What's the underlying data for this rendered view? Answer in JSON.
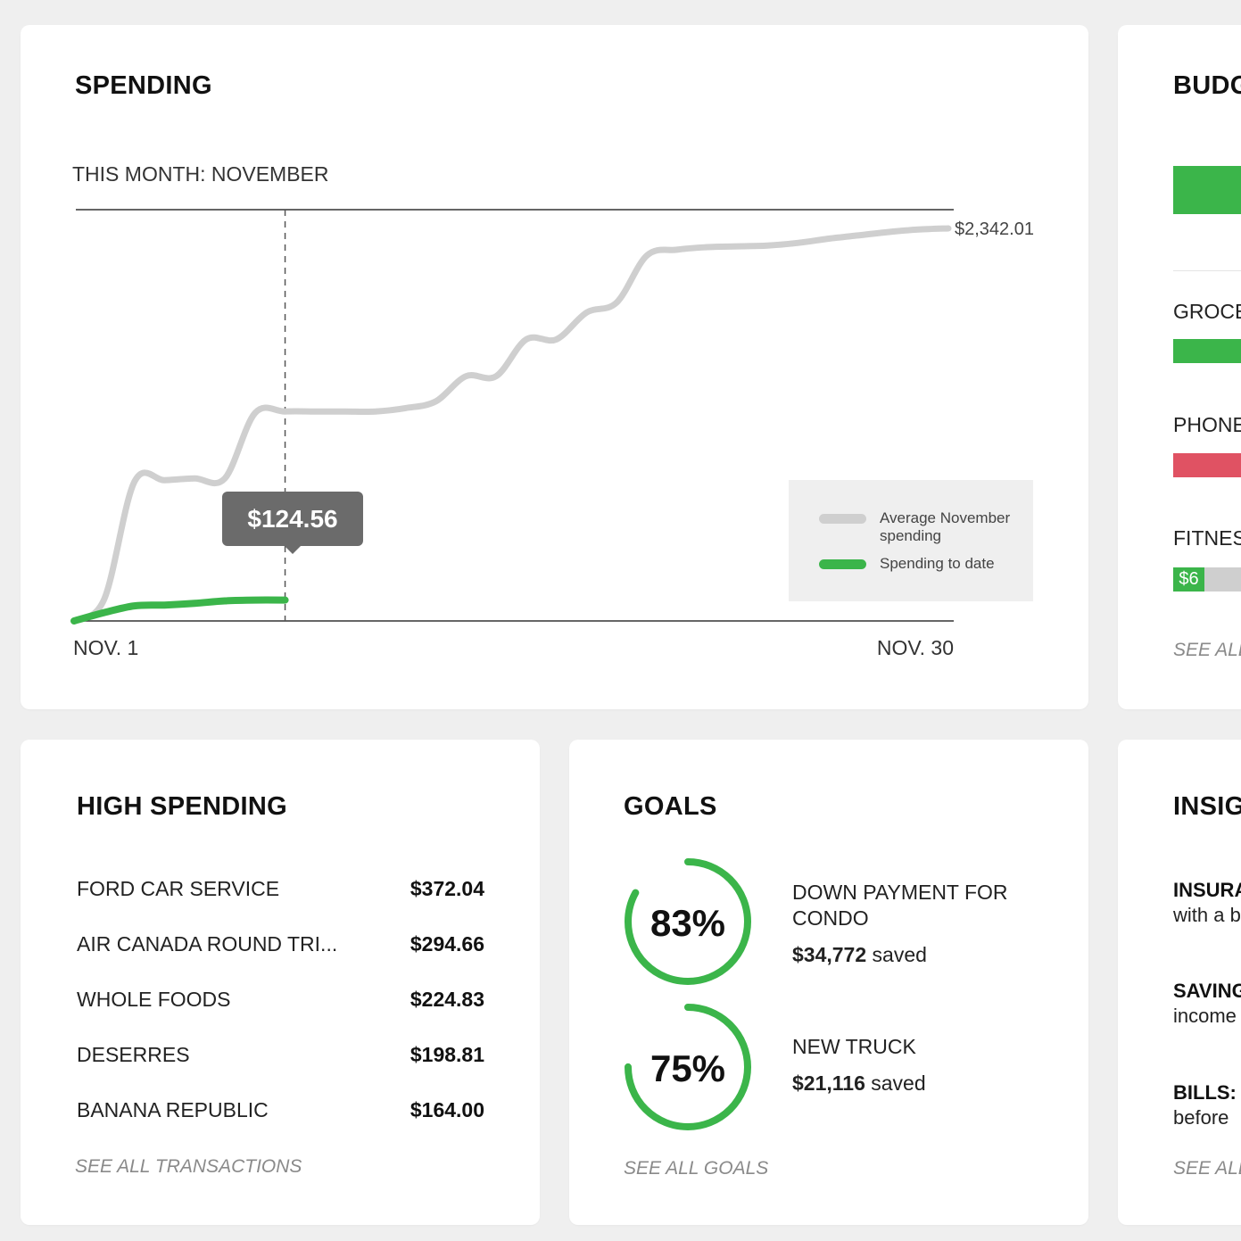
{
  "colors": {
    "green": "#3bb54a",
    "gray_line": "#cfcfcf",
    "red": "#e05263",
    "tooltip_bg": "#6b6b6b"
  },
  "spending": {
    "title": "SPENDING",
    "subtitle": "THIS MONTH: NOVEMBER",
    "tooltip": "$124.56",
    "end_value_label": "$2,342.01",
    "legend": [
      {
        "label": "Average November spending",
        "color": "#cfcfcf"
      },
      {
        "label": "Spending to date",
        "color": "#3bb54a"
      }
    ]
  },
  "chart_data": {
    "type": "line",
    "title": "",
    "x_range": [
      "NOV. 1",
      "NOV. 30"
    ],
    "tick_labels": [
      "NOV. 1",
      "NOV. 30"
    ],
    "ylim": [
      0,
      2342.01
    ],
    "grid": false,
    "legend_position": "bottom-right",
    "series": [
      {
        "name": "Average November spending",
        "color": "#cfcfcf",
        "x": [
          1,
          2,
          3,
          4,
          5,
          6,
          7,
          8,
          9,
          10,
          11,
          12,
          13,
          14,
          15,
          16,
          17,
          18,
          19,
          20,
          21,
          22,
          23,
          24,
          25,
          26,
          27,
          28,
          29,
          30
        ],
        "y": [
          0,
          130,
          830,
          840,
          850,
          850,
          1240,
          1250,
          1250,
          1250,
          1250,
          1270,
          1310,
          1460,
          1460,
          1680,
          1680,
          1840,
          1900,
          2180,
          2215,
          2230,
          2235,
          2240,
          2255,
          2280,
          2300,
          2320,
          2335,
          2342.01
        ]
      },
      {
        "name": "Spending to date",
        "color": "#3bb54a",
        "x": [
          1,
          2,
          3,
          4,
          5,
          6,
          7,
          8
        ],
        "y": [
          0,
          50,
          90,
          95,
          105,
          120,
          124.56,
          124.56
        ]
      }
    ],
    "marker": {
      "x": 8,
      "label": "$124.56"
    }
  },
  "budget": {
    "title": "BUDG",
    "items": [
      {
        "label": "GROCE",
        "color": "#3bb54a"
      },
      {
        "label": "PHONE",
        "color": "#e05263"
      },
      {
        "label": "FITNES",
        "color": "#3bb54a",
        "chip": "$6"
      }
    ],
    "see_all": "SEE ALL"
  },
  "high_spending": {
    "title": "HIGH SPENDING",
    "rows": [
      {
        "name": "FORD CAR SERVICE",
        "amount": "$372.04"
      },
      {
        "name": "AIR CANADA ROUND TRI...",
        "amount": "$294.66"
      },
      {
        "name": "WHOLE FOODS",
        "amount": "$224.83"
      },
      {
        "name": "DESERRES",
        "amount": "$198.81"
      },
      {
        "name": "BANANA REPUBLIC",
        "amount": "$164.00"
      }
    ],
    "see_all": "SEE ALL TRANSACTIONS"
  },
  "goals": {
    "title": "GOALS",
    "items": [
      {
        "percent_label": "83%",
        "progress": 0.83,
        "name": "DOWN PAYMENT FOR CONDO",
        "amount": "$34,772",
        "saved_suffix": " saved"
      },
      {
        "percent_label": "75%",
        "progress": 0.75,
        "name": "NEW TRUCK",
        "amount": "$21,116",
        "saved_suffix": " saved"
      }
    ],
    "see_all": "SEE ALL GOALS"
  },
  "insights": {
    "title": "INSIG",
    "items": [
      {
        "title": "INSURA",
        "text": "with a b"
      },
      {
        "title": "SAVING",
        "text": "income"
      },
      {
        "title": "BILLS: Y",
        "text": "before"
      }
    ],
    "see_all": "SEE ALL"
  }
}
